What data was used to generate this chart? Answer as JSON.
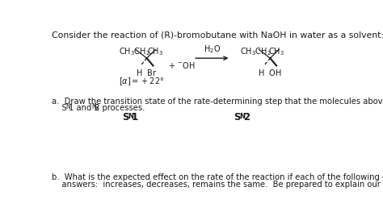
{
  "background_color": "#ffffff",
  "text_color": "#1a1a1a",
  "title": "Consider the reaction of (R)-bromobutane with NaOH in water as a solvent:",
  "part_a_line1": "a.  Draw the transition state of the rate-determining step that the molecules above would pass through via the",
  "part_a_line2": "    Sₙ±1 and Sₙ±2 processes.",
  "sn1": "Sₙ±1",
  "sn2": "Sₙ±2",
  "part_b_line1": "b.  What is the expected effect on the rate of the reaction if each of the following changes is made?  Possible",
  "part_b_line2": "    answers:  increases, decreases, remains the same.  Be prepared to explain our reasoning.",
  "fs_title": 7.8,
  "fs_body": 7.2,
  "fs_chem": 7.0,
  "fs_bold": 8.5
}
